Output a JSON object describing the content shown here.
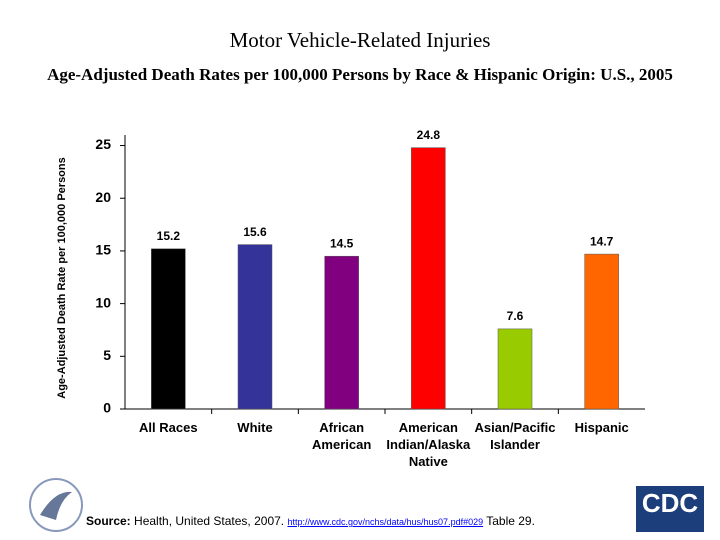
{
  "chart_data": {
    "type": "bar",
    "title": "Motor Vehicle-Related Injuries",
    "subtitle": "Age-Adjusted Death Rates per 100,000 Persons by Race & Hispanic Origin: U.S., 2005",
    "y_label": "Age-Adjusted Death Rate per 100,000 Persons",
    "categories": [
      "All Races",
      "White",
      "African American",
      "American Indian/Alaska Native",
      "Asian/Pacific Islander",
      "Hispanic"
    ],
    "values": [
      15.2,
      15.6,
      14.5,
      24.8,
      7.6,
      14.7
    ],
    "colors": [
      "#000000",
      "#333399",
      "#800080",
      "#ff0000",
      "#99cc00",
      "#ff6600"
    ],
    "ylim": [
      0,
      26
    ],
    "yticks": [
      0,
      5,
      10,
      15,
      20,
      25
    ],
    "grid": false
  },
  "footer": {
    "source_label": "Source:",
    "source_text": "Health, United States, 2007.",
    "link": "http://www.cdc.gov/nchs/data/hus/hus07.pdf#029",
    "table": "Table 29."
  },
  "logo": {
    "text": "CDC"
  }
}
